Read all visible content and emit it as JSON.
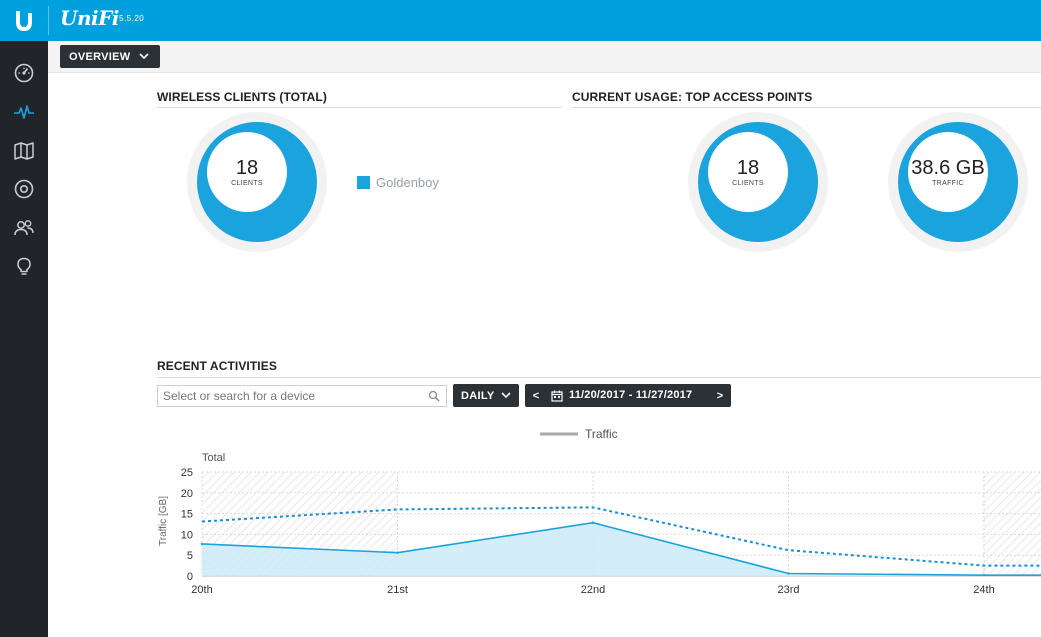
{
  "app": {
    "brand": "UniFi",
    "version": "5.5.20"
  },
  "sidebar": {
    "items": [
      {
        "name": "dashboard",
        "icon": "dashboard-gauge-icon",
        "active": false
      },
      {
        "name": "statistics",
        "icon": "pulse-icon",
        "active": true
      },
      {
        "name": "map",
        "icon": "map-icon",
        "active": false
      },
      {
        "name": "devices",
        "icon": "target-icon",
        "active": false
      },
      {
        "name": "clients",
        "icon": "users-icon",
        "active": false
      },
      {
        "name": "insights",
        "icon": "lightbulb-icon",
        "active": false
      }
    ]
  },
  "header": {
    "view_label": "OVERVIEW"
  },
  "wireless": {
    "title": "WIRELESS CLIENTS (TOTAL)",
    "value": "18",
    "unit": "CLIENTS",
    "legend": [
      {
        "label": "Goldenboy",
        "color": "#1aa3dd"
      }
    ]
  },
  "usage": {
    "title": "CURRENT USAGE: TOP ACCESS POINTS",
    "clients_value": "18",
    "clients_unit": "CLIENTS",
    "traffic_value": "38.6 GB",
    "traffic_unit": "TRAFFIC"
  },
  "activities": {
    "title": "RECENT ACTIVITIES",
    "search_placeholder": "Select or search for a device",
    "interval_label": "DAILY",
    "date_range": "11/20/2017 - 11/27/2017",
    "prev": "<",
    "next": ">"
  },
  "colors": {
    "accent": "#00a0df",
    "series": "#1aa3dd",
    "sidebar": "#21252a"
  },
  "chart_data": {
    "type": "area",
    "title": "Total",
    "legend": [
      "Traffic"
    ],
    "ylabel": "Traffic [GB]",
    "ylim": [
      0,
      25
    ],
    "yticks": [
      0,
      5,
      10,
      15,
      20,
      25
    ],
    "categories": [
      "20th",
      "21st",
      "22nd",
      "23rd",
      "24th"
    ],
    "series": [
      {
        "name": "Traffic",
        "style": "solid-area",
        "values": [
          7.7,
          5.6,
          12.8,
          0.6,
          0.2
        ]
      },
      {
        "style": "dotted",
        "values": [
          13.1,
          16.0,
          16.5,
          6.2,
          2.5
        ]
      }
    ]
  }
}
